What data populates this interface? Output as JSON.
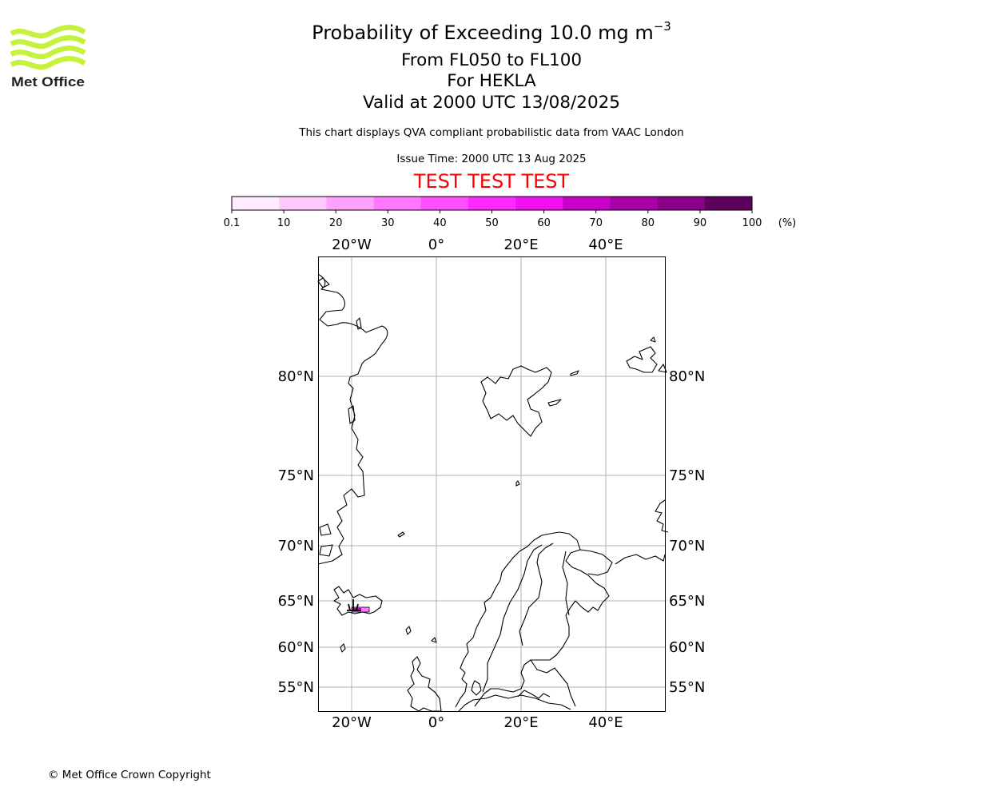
{
  "logo": {
    "text": "Met Office",
    "color": "#c5f23c"
  },
  "header": {
    "title_main": "Probability of Exceeding 10.0 mg m",
    "title_superscript": "−3",
    "title_levels": "From FL050 to FL100",
    "title_volcano": "For HEKLA",
    "title_valid": "Valid at 2000 UTC 13/08/2025",
    "subtitle": "This chart displays QVA compliant probabilistic data from VAAC London",
    "issue_time": "Issue Time: 2000 UTC 13 Aug 2025",
    "test_banner": "TEST TEST TEST",
    "test_banner_color": "#ff0000"
  },
  "colorbar": {
    "tick_labels": [
      "0.1",
      "10",
      "20",
      "30",
      "40",
      "50",
      "60",
      "70",
      "80",
      "90",
      "100"
    ],
    "unit_label": "(%)",
    "colors": [
      "#ffeaff",
      "#ffc8ff",
      "#ffa2ff",
      "#ff77ff",
      "#ff4eff",
      "#ff2aff",
      "#f20ff2",
      "#c800c8",
      "#a700a7",
      "#8a008a",
      "#5e005e"
    ]
  },
  "map": {
    "top_lon_labels": [
      "20°W",
      "0°",
      "20°E",
      "40°E"
    ],
    "bottom_lon_labels": [
      "20°W",
      "0°",
      "20°E",
      "40°E"
    ],
    "lat_labels": [
      "80°N",
      "75°N",
      "70°N",
      "65°N",
      "60°N",
      "55°N"
    ],
    "grid_color": "#b0b0b0",
    "ash_color": "#c800c8",
    "volcano": "HEKLA"
  },
  "footer": {
    "copyright": "© Met Office Crown Copyright"
  }
}
